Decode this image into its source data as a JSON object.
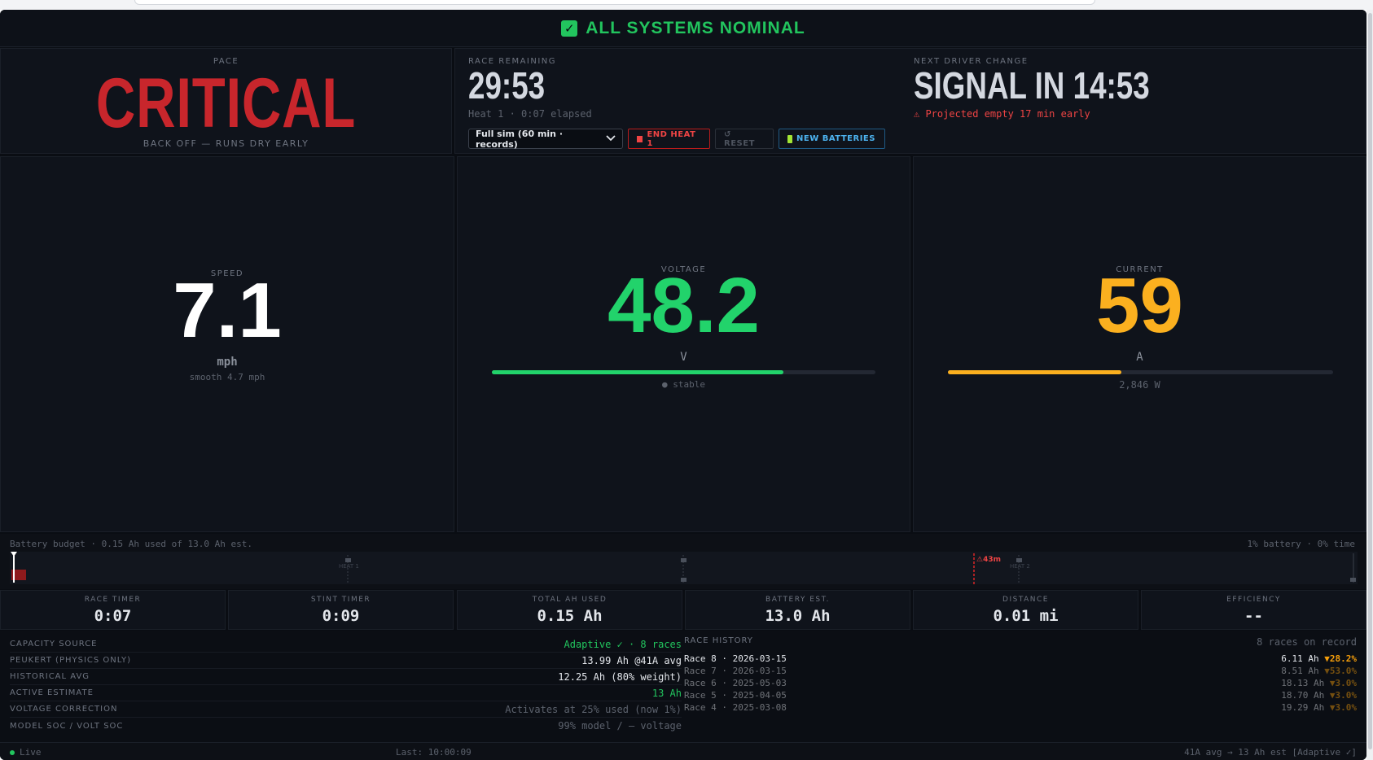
{
  "banner": {
    "status": "ALL SYSTEMS NOMINAL",
    "check_icon": "check-icon",
    "color": "#22c55e"
  },
  "pace": {
    "label": "PACE",
    "status": "CRITICAL",
    "advice": "BACK OFF — RUNS DRY EARLY",
    "color": "#c8262c"
  },
  "race": {
    "remaining_label": "RACE REMAINING",
    "remaining": "29:53",
    "heat_info": "Heat 1 · 0:07 elapsed",
    "next_change_label": "NEXT DRIVER CHANGE",
    "next_change": "SIGNAL IN 14:53",
    "projection": "⚠ Projected empty 17 min early"
  },
  "controls": {
    "mode_value": "Full sim (60 min · records)",
    "end_label": "END HEAT 1",
    "reset_label": "↺ RESET",
    "new_batteries_label": "NEW BATTERIES"
  },
  "speed": {
    "label": "SPEED",
    "value": "7.1",
    "unit": "mph",
    "smooth": "smooth 4.7 mph"
  },
  "voltage": {
    "label": "VOLTAGE",
    "value": "48.2",
    "unit": "V",
    "status": "● stable",
    "fill_fraction": 0.76,
    "color": "#22d36b"
  },
  "current": {
    "label": "CURRENT",
    "value": "59",
    "unit": "A",
    "power": "2,846 W",
    "fill_fraction": 0.45,
    "color": "#fbb01f"
  },
  "budget": {
    "summary": "Battery budget · 0.15 Ah used of 13.0 Ah est.",
    "usage": "1% battery · 0% time",
    "marker_43m": "⚠43m",
    "heat1": "HEAT 1",
    "heat2": "HEAT 2"
  },
  "stats": [
    {
      "label": "RACE TIMER",
      "value": "0:07"
    },
    {
      "label": "STINT TIMER",
      "value": "0:09"
    },
    {
      "label": "TOTAL AH USED",
      "value": "0.15 Ah"
    },
    {
      "label": "BATTERY EST.",
      "value": "13.0 Ah"
    },
    {
      "label": "DISTANCE",
      "value": "0.01 mi"
    },
    {
      "label": "EFFICIENCY",
      "value": "--"
    }
  ],
  "capacity": [
    {
      "key": "CAPACITY SOURCE",
      "value": "Adaptive ✓ · 8 races"
    },
    {
      "key": "PEUKERT (PHYSICS ONLY)",
      "value": "13.99 Ah @41A avg"
    },
    {
      "key": "HISTORICAL AVG",
      "value": "12.25 Ah (80% weight)"
    },
    {
      "key": "ACTIVE ESTIMATE",
      "value": "13 Ah"
    },
    {
      "key": "VOLTAGE CORRECTION",
      "value": "Activates at 25% used (now 1%)"
    },
    {
      "key": "MODEL SOC / VOLT SOC",
      "value": "99% model / — voltage"
    }
  ],
  "history": {
    "label": "RACE HISTORY",
    "count": "8 races on record",
    "rows": [
      {
        "race": "Race 8 · 2026-03-15",
        "ah": "6.11 Ah",
        "delta": "▼28.2%"
      },
      {
        "race": "Race 7 · 2026-03-15",
        "ah": "8.51 Ah",
        "delta": "▼53.0%"
      },
      {
        "race": "Race 6 · 2025-05-03",
        "ah": "18.13 Ah",
        "delta": "▼3.0%"
      },
      {
        "race": "Race 5 · 2025-04-05",
        "ah": "18.70 Ah",
        "delta": "▼3.0%"
      },
      {
        "race": "Race 4 · 2025-03-08",
        "ah": "19.29 Ah",
        "delta": "▼3.0%"
      }
    ]
  },
  "footer": {
    "live": "Live",
    "last": "Last: 10:00:09",
    "estimate": "41A avg → 13 Ah est [Adaptive ✓]"
  }
}
